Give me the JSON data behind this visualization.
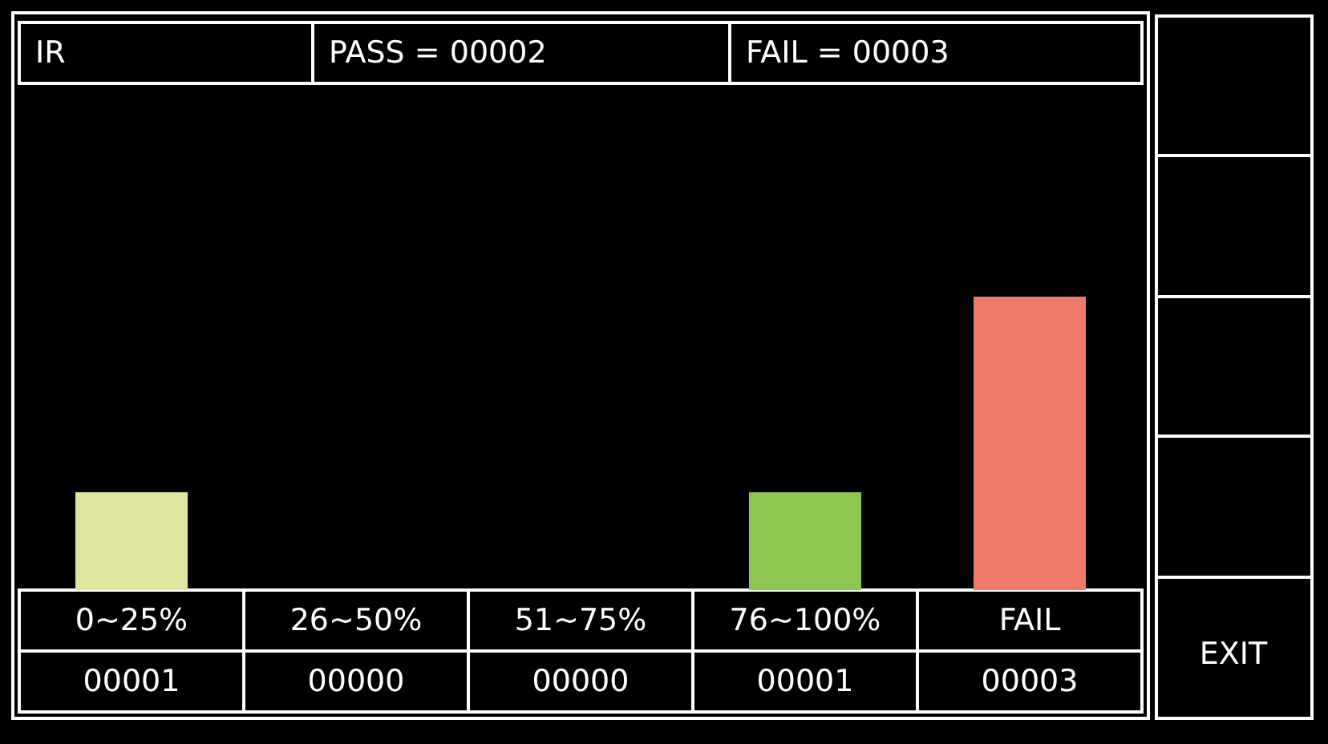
{
  "chart_data": {
    "type": "bar",
    "categories": [
      "0~25%",
      "26~50%",
      "51~75%",
      "76~100%",
      "FAIL"
    ],
    "values": [
      1,
      0,
      0,
      1,
      3
    ],
    "colors": [
      "#dfe6a0",
      "#b0b0b0",
      "#b0b0b0",
      "#8cc850",
      "#f07a6a"
    ],
    "value_labels": [
      "00001",
      "00000",
      "00000",
      "00001",
      "00003"
    ],
    "annotations": [
      "IR",
      "PASS = 00002",
      "FAIL = 00003",
      "EXIT"
    ]
  }
}
